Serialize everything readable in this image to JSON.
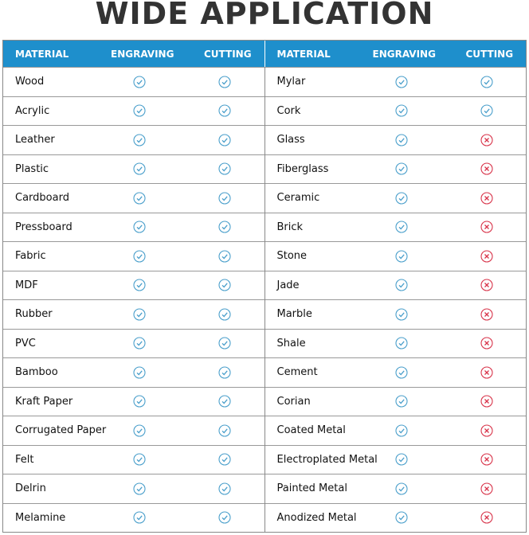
{
  "title": "WIDE APPLICATION",
  "colors": {
    "header": "#1e8fcc",
    "check": "#4a9fcb",
    "cross": "#d8344a"
  },
  "headers": [
    "MATERIAL",
    "ENGRAVING",
    "CUTTING"
  ],
  "left": [
    {
      "material": "Wood",
      "engraving": true,
      "cutting": true
    },
    {
      "material": "Acrylic",
      "engraving": true,
      "cutting": true
    },
    {
      "material": "Leather",
      "engraving": true,
      "cutting": true
    },
    {
      "material": "Plastic",
      "engraving": true,
      "cutting": true
    },
    {
      "material": "Cardboard",
      "engraving": true,
      "cutting": true
    },
    {
      "material": "Pressboard",
      "engraving": true,
      "cutting": true
    },
    {
      "material": "Fabric",
      "engraving": true,
      "cutting": true
    },
    {
      "material": "MDF",
      "engraving": true,
      "cutting": true
    },
    {
      "material": "Rubber",
      "engraving": true,
      "cutting": true
    },
    {
      "material": "PVC",
      "engraving": true,
      "cutting": true
    },
    {
      "material": "Bamboo",
      "engraving": true,
      "cutting": true
    },
    {
      "material": "Kraft Paper",
      "engraving": true,
      "cutting": true
    },
    {
      "material": "Corrugated Paper",
      "engraving": true,
      "cutting": true
    },
    {
      "material": "Felt",
      "engraving": true,
      "cutting": true
    },
    {
      "material": "Delrin",
      "engraving": true,
      "cutting": true
    },
    {
      "material": "Melamine",
      "engraving": true,
      "cutting": true
    }
  ],
  "right": [
    {
      "material": "Mylar",
      "engraving": true,
      "cutting": true
    },
    {
      "material": "Cork",
      "engraving": true,
      "cutting": true
    },
    {
      "material": "Glass",
      "engraving": true,
      "cutting": false
    },
    {
      "material": "Fiberglass",
      "engraving": true,
      "cutting": false
    },
    {
      "material": "Ceramic",
      "engraving": true,
      "cutting": false
    },
    {
      "material": "Brick",
      "engraving": true,
      "cutting": false
    },
    {
      "material": "Stone",
      "engraving": true,
      "cutting": false
    },
    {
      "material": "Jade",
      "engraving": true,
      "cutting": false
    },
    {
      "material": "Marble",
      "engraving": true,
      "cutting": false
    },
    {
      "material": "Shale",
      "engraving": true,
      "cutting": false
    },
    {
      "material": "Cement",
      "engraving": true,
      "cutting": false
    },
    {
      "material": "Corian",
      "engraving": true,
      "cutting": false
    },
    {
      "material": "Coated Metal",
      "engraving": true,
      "cutting": false
    },
    {
      "material": "Electroplated Metal",
      "engraving": true,
      "cutting": false
    },
    {
      "material": "Painted Metal",
      "engraving": true,
      "cutting": false
    },
    {
      "material": "Anodized Metal",
      "engraving": true,
      "cutting": false
    }
  ]
}
